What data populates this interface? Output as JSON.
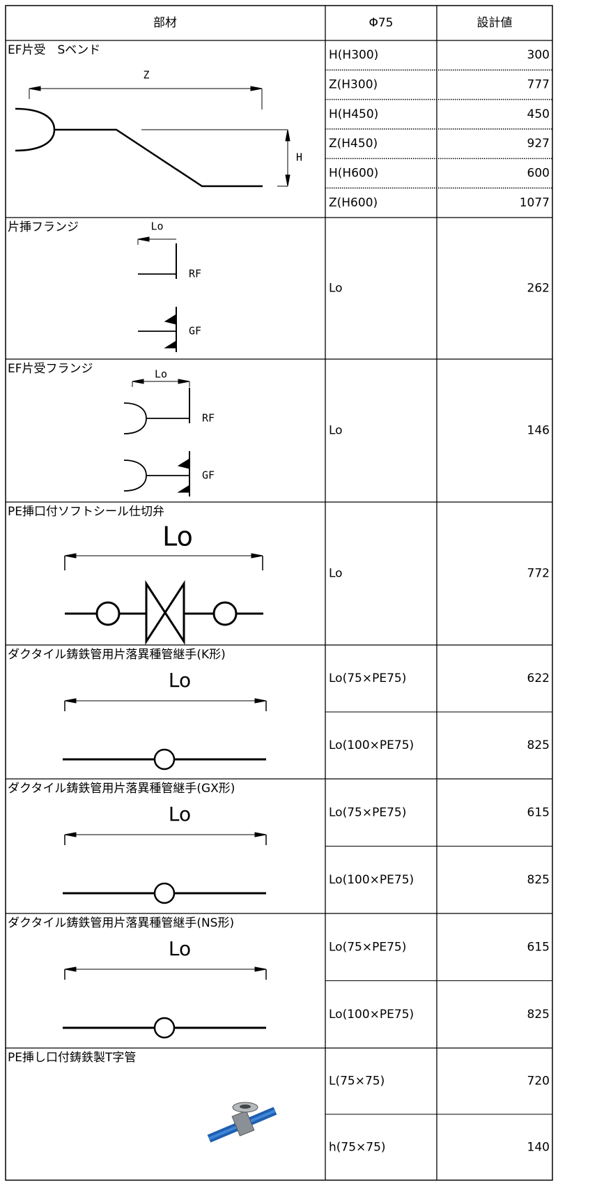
{
  "header": [
    "部材",
    "Φ75",
    "設計値"
  ],
  "sections": [
    {
      "name": "EF片受　Sベンド",
      "labels": [
        "Z",
        "H"
      ],
      "rows": [
        [
          "H(H300)",
          300
        ],
        [
          "Z(H300)",
          777
        ],
        [
          "H(H450)",
          450
        ],
        [
          "Z(H450)",
          927
        ],
        [
          "H(H600)",
          600
        ],
        [
          "Z(H600)",
          1077
        ]
      ]
    },
    {
      "name": "片挿フランジ",
      "labels": [
        "Lo",
        "RF",
        "GF"
      ],
      "rows": [
        [
          "Lo",
          262
        ]
      ]
    },
    {
      "name": "EF片受フランジ",
      "labels": [
        "Lo",
        "RF",
        "GF"
      ],
      "rows": [
        [
          "Lo",
          146
        ]
      ]
    },
    {
      "name": "PE挿口付ソフトシール仕切弁",
      "labels": [
        "Lo"
      ],
      "rows": [
        [
          "Lo",
          772
        ]
      ]
    },
    {
      "name": "ダクタイル鋳鉄管用片落異種管継手(K形)",
      "labels": [
        "Lo"
      ],
      "rows": [
        [
          "Lo(75×PE75)",
          622
        ],
        [
          "Lo(100×PE75)",
          825
        ]
      ]
    },
    {
      "name": "ダクタイル鋳鉄管用片落異種管継手(GX形)",
      "labels": [
        "Lo"
      ],
      "rows": [
        [
          "Lo(75×PE75)",
          615
        ],
        [
          "Lo(100×PE75)",
          825
        ]
      ]
    },
    {
      "name": "ダクタイル鋳鉄管用片落異種管継手(NS形)",
      "labels": [
        "Lo"
      ],
      "rows": [
        [
          "Lo(75×PE75)",
          615
        ],
        [
          "Lo(100×PE75)",
          825
        ]
      ]
    },
    {
      "name": "PE挿し口付鋳鉄製T字管",
      "labels": [],
      "rows": [
        [
          "L(75×75)",
          720
        ],
        [
          "h(75×75)",
          140
        ]
      ]
    }
  ]
}
